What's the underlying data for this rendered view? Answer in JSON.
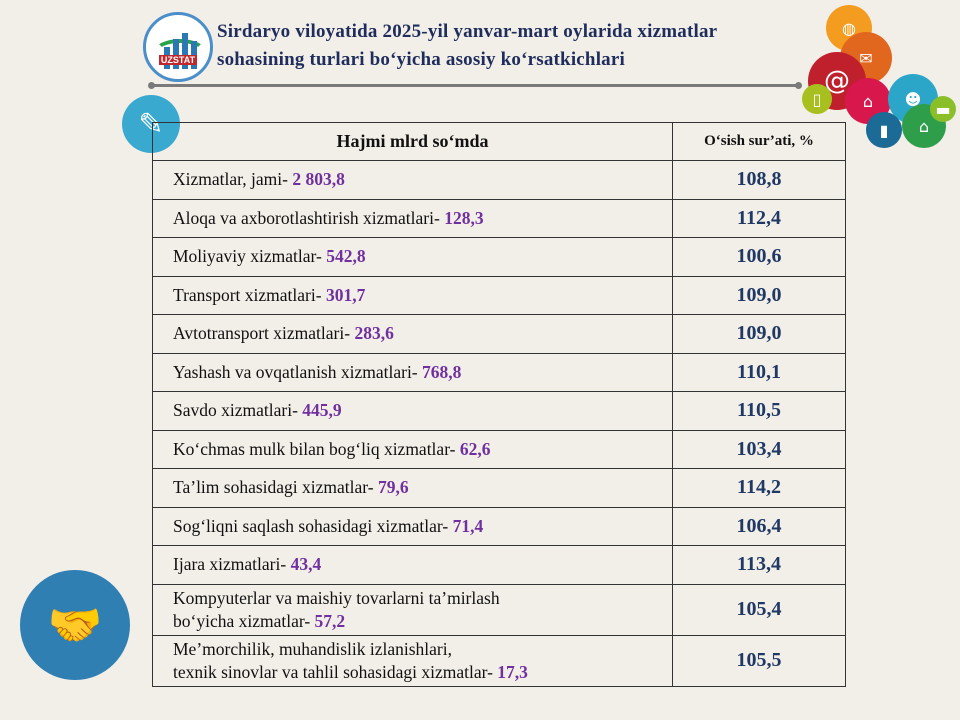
{
  "logo": {
    "text": "UZSTAT"
  },
  "title": "Sirdaryo viloyatida 2025-yil yanvar-mart oylarida xizmatlar sohasining turlari bo‘yicha asosiy ko‘rsatkichlari",
  "table": {
    "headers": [
      "Hajmi mlrd so‘mda",
      "O‘sish sur’ati, %"
    ],
    "rows": [
      {
        "label": "Xizmatlar, jami-",
        "value": "2 803,8",
        "growth": "108,8"
      },
      {
        "label": "Aloqa va axborotlashtirish xizmatlari-",
        "value": "128,3",
        "growth": "112,4"
      },
      {
        "label": "Moliyaviy xizmatlar-",
        "value": "542,8",
        "growth": "100,6"
      },
      {
        "label": "Transport xizmatlari-",
        "value": "301,7",
        "growth": "109,0"
      },
      {
        "label": "Avtotransport xizmatlari-",
        "value": "283,6",
        "growth": "109,0"
      },
      {
        "label": "Yashash va ovqatlanish xizmatlari-",
        "value": "768,8",
        "growth": "110,1"
      },
      {
        "label": "Savdo xizmatlari-",
        "value": "445,9",
        "growth": "110,5"
      },
      {
        "label": "Ko‘chmas mulk bilan bog‘liq xizmatlar-",
        "value": "62,6",
        "growth": "103,4"
      },
      {
        "label": "Ta’lim sohasidagi xizmatlar-",
        "value": "79,6",
        "growth": "114,2"
      },
      {
        "label": "Sog‘liqni saqlash sohasidagi xizmatlar-",
        "value": "71,4",
        "growth": "106,4"
      },
      {
        "label": "Ijara xizmatlari-",
        "value": "43,4",
        "growth": "113,4"
      },
      {
        "label1": "Kompyuterlar va maishiy tovarlarni ta’mirlash",
        "label": "bo‘yicha xizmatlar-",
        "value": "57,2",
        "growth": "105,4"
      },
      {
        "label1": "Me’morchilik, muhandislik izlanishlari,",
        "label": "texnik sinovlar va tahlil sohasidagi xizmatlar-",
        "value": "17,3",
        "growth": "105,5"
      }
    ]
  }
}
